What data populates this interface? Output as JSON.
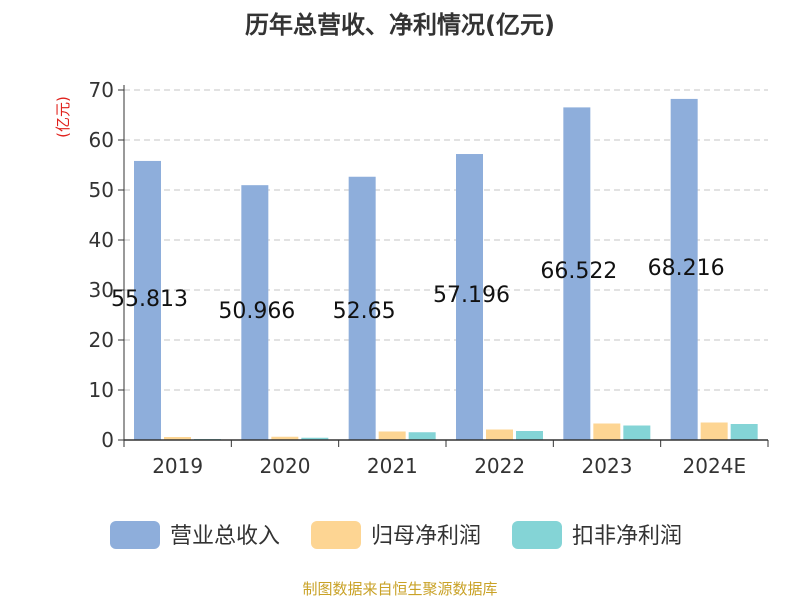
{
  "chart_data": {
    "type": "bar",
    "title": "历年总营收、净利情况(亿元)",
    "unit_label": "(亿元)",
    "categories": [
      "2019",
      "2020",
      "2021",
      "2022",
      "2023",
      "2024E"
    ],
    "series": [
      {
        "name": "营业总收入",
        "color": "#8eaedb",
        "values": [
          55.813,
          50.966,
          52.65,
          57.196,
          66.522,
          68.216
        ],
        "labels": [
          "55.813",
          "50.966",
          "52.65",
          "57.196",
          "66.522",
          "68.216"
        ]
      },
      {
        "name": "归母净利润",
        "color": "#fdd593",
        "values": [
          0.6,
          0.65,
          1.7,
          2.1,
          3.3,
          3.5
        ]
      },
      {
        "name": "扣非净利润",
        "color": "#84d4d6",
        "values": [
          0.2,
          0.45,
          1.55,
          1.8,
          2.9,
          3.2
        ]
      }
    ],
    "yticks": [
      "0",
      "10",
      "20",
      "30",
      "40",
      "50",
      "60",
      "70"
    ],
    "ylim": [
      0,
      70
    ],
    "grid": true,
    "legend_position": "bottom",
    "source": "制图数据来自恒生聚源数据库"
  }
}
